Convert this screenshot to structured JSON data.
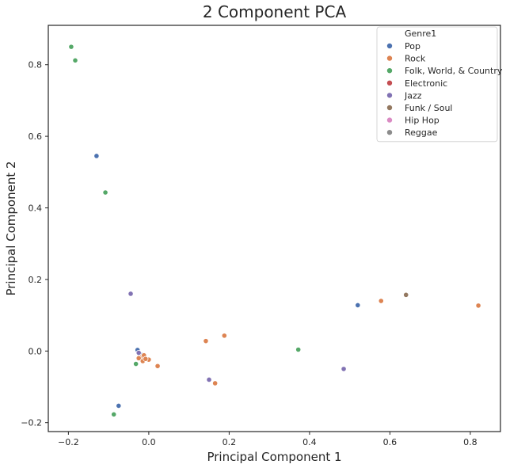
{
  "chart_data": {
    "type": "scatter",
    "title": "2 Component PCA",
    "xlabel": "Principal Component 1",
    "ylabel": "Principal Component 2",
    "xlim": [
      -0.25,
      0.875
    ],
    "ylim": [
      -0.225,
      0.91
    ],
    "xticks": [
      -0.2,
      0.0,
      0.2,
      0.4,
      0.6,
      0.8
    ],
    "xtick_labels": [
      "−0.2",
      "0.0",
      "0.2",
      "0.4",
      "0.6",
      "0.8"
    ],
    "yticks": [
      -0.2,
      0.0,
      0.2,
      0.4,
      0.6,
      0.8
    ],
    "ytick_labels": [
      "−0.2",
      "0.0",
      "0.2",
      "0.4",
      "0.6",
      "0.8"
    ],
    "grid": false,
    "legend": {
      "title": "Genre1",
      "placement": "top-right"
    },
    "series": [
      {
        "name": "Pop",
        "color": "#4c72b0",
        "points": [
          [
            -0.13,
            0.545
          ],
          [
            0.52,
            0.128
          ],
          [
            -0.075,
            -0.153
          ],
          [
            -0.028,
            0.003
          ],
          [
            -0.02,
            -0.01
          ]
        ]
      },
      {
        "name": "Rock",
        "color": "#dd8452",
        "points": [
          [
            0.82,
            0.127
          ],
          [
            0.578,
            0.14
          ],
          [
            0.188,
            0.043
          ],
          [
            0.142,
            0.028
          ],
          [
            0.165,
            -0.09
          ],
          [
            0.022,
            -0.042
          ],
          [
            0.0,
            -0.024
          ],
          [
            -0.02,
            -0.018
          ],
          [
            -0.012,
            -0.012
          ],
          [
            -0.025,
            -0.02
          ],
          [
            -0.015,
            -0.028
          ],
          [
            -0.008,
            -0.022
          ]
        ]
      },
      {
        "name": "Folk, World, & Country",
        "color": "#55a868",
        "points": [
          [
            -0.193,
            0.85
          ],
          [
            -0.183,
            0.812
          ],
          [
            -0.108,
            0.443
          ],
          [
            0.372,
            0.004
          ],
          [
            -0.032,
            -0.036
          ],
          [
            -0.087,
            -0.177
          ]
        ]
      },
      {
        "name": "Electronic",
        "color": "#c44e52",
        "points": []
      },
      {
        "name": "Jazz",
        "color": "#8172b3",
        "points": [
          [
            -0.045,
            0.16
          ],
          [
            0.485,
            -0.05
          ],
          [
            0.15,
            -0.08
          ],
          [
            -0.025,
            -0.005
          ]
        ]
      },
      {
        "name": "Funk / Soul",
        "color": "#937860",
        "points": [
          [
            0.64,
            0.157
          ]
        ]
      },
      {
        "name": "Hip Hop",
        "color": "#da8bc3",
        "points": []
      },
      {
        "name": "Reggae",
        "color": "#8c8c8c",
        "points": []
      }
    ]
  }
}
